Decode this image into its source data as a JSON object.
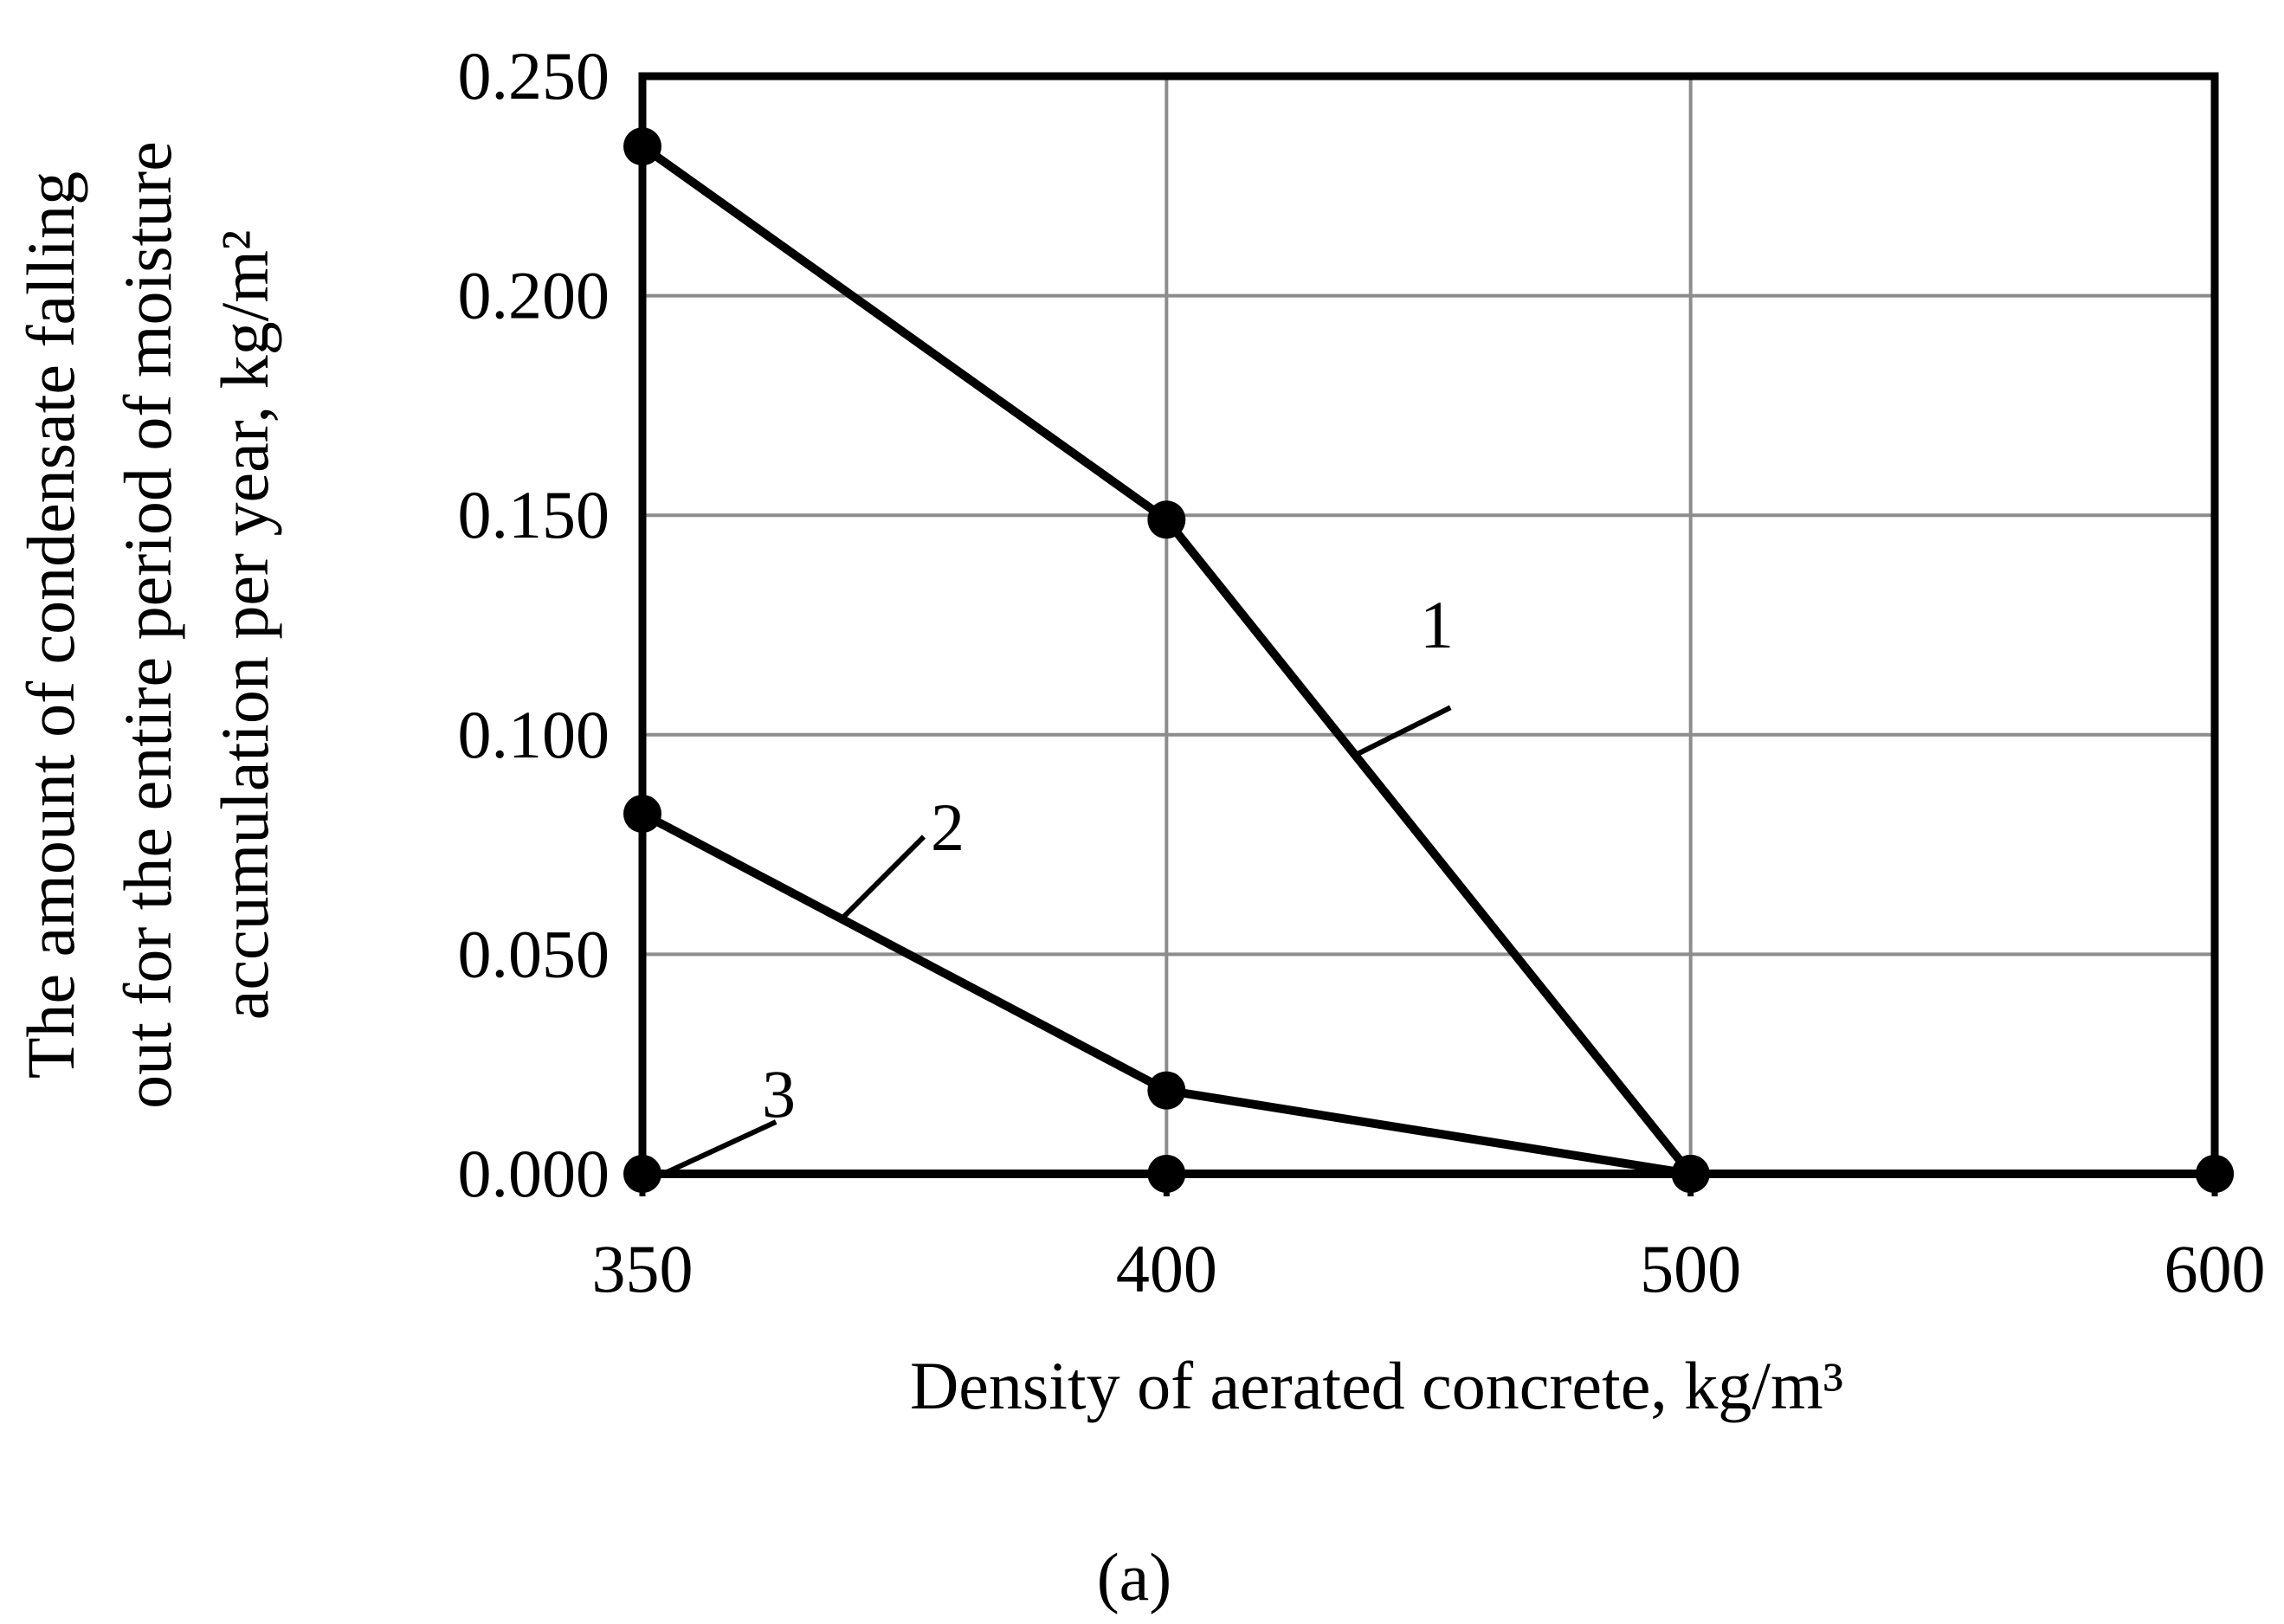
{
  "chart_data": {
    "type": "line",
    "x": [
      350,
      400,
      500,
      600
    ],
    "x_tick_labels": [
      "350",
      "400",
      "500",
      "600"
    ],
    "y_tick_labels": [
      "0.000",
      "0.050",
      "0.100",
      "0.150",
      "0.200",
      "0.250"
    ],
    "ylim": [
      0,
      0.25
    ],
    "xlabel": "Density of aerated concrete, kg/m³",
    "ylabel_lines": [
      "The amount of condensate falling",
      "out for the entire period of moisture",
      "accumulation per year, kg/m²"
    ],
    "grid": true,
    "legend": "none",
    "series": [
      {
        "label": "1",
        "values": [
          0.234,
          0.149,
          0.0,
          0.0
        ]
      },
      {
        "label": "2",
        "values": [
          0.082,
          0.019,
          0.0,
          0.0
        ]
      },
      {
        "label": "3",
        "values": [
          0.0,
          0.0,
          0.0,
          0.0
        ]
      }
    ],
    "panel_label": "(a)",
    "colors": {
      "line": "#000000",
      "grid": "#8c8c8c"
    }
  }
}
